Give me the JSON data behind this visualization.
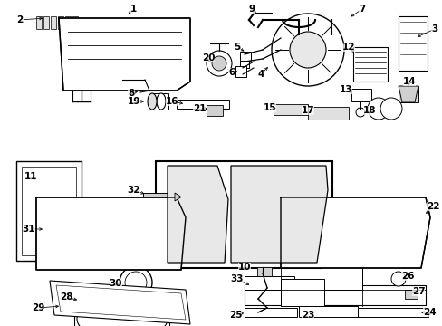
{
  "bg": "#ffffff",
  "lw": 1.0,
  "parts_color": "#000000",
  "fill_light": "#f0f0f0",
  "fill_white": "#ffffff"
}
